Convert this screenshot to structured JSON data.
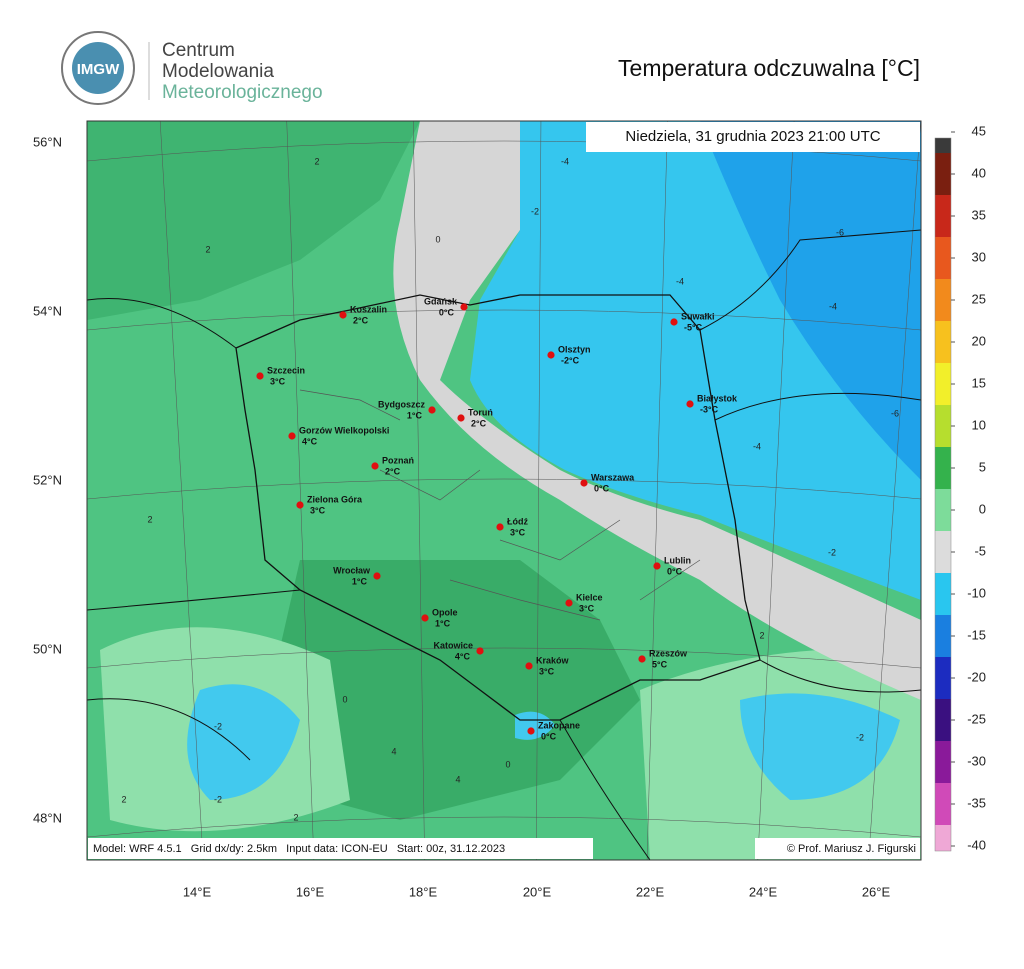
{
  "header": {
    "logo": "IMGW",
    "organization": [
      "Centrum",
      "Modelowania",
      "Meteorologicznego"
    ],
    "title": "Temperatura odczuwalna [°C]"
  },
  "map": {
    "valid_time": "Niedziela, 31 grudnia 2023 21:00 UTC",
    "footer_left": "Model: WRF 4.5.1   Grid dx/dy: 2.5km   Input data: ICON-EU   Start: 00z, 31.12.2023",
    "footer_right": "© Prof. Mariusz J. Figurski",
    "lat_labels": [
      "56°N",
      "54°N",
      "52°N",
      "50°N",
      "48°N"
    ],
    "lon_labels": [
      "14°E",
      "16°E",
      "18°E",
      "20°E",
      "22°E",
      "24°E",
      "26°E"
    ],
    "cities": [
      {
        "name": "Koszalin",
        "temp": "2°C"
      },
      {
        "name": "Gdańsk",
        "temp": "0°C"
      },
      {
        "name": "Suwałki",
        "temp": "-5°C"
      },
      {
        "name": "Olsztyn",
        "temp": "-2°C"
      },
      {
        "name": "Szczecin",
        "temp": "3°C"
      },
      {
        "name": "Białystok",
        "temp": "-3°C"
      },
      {
        "name": "Bydgoszcz",
        "temp": "1°C"
      },
      {
        "name": "Toruń",
        "temp": "2°C"
      },
      {
        "name": "Gorzów Wielkopolski",
        "temp": "4°C"
      },
      {
        "name": "Poznań",
        "temp": "2°C"
      },
      {
        "name": "Warszawa",
        "temp": "0°C"
      },
      {
        "name": "Zielona Góra",
        "temp": "3°C"
      },
      {
        "name": "Łódź",
        "temp": "3°C"
      },
      {
        "name": "Lublin",
        "temp": "0°C"
      },
      {
        "name": "Wrocław",
        "temp": "1°C"
      },
      {
        "name": "Kielce",
        "temp": "3°C"
      },
      {
        "name": "Opole",
        "temp": "1°C"
      },
      {
        "name": "Katowice",
        "temp": "4°C"
      },
      {
        "name": "Rzeszów",
        "temp": "5°C"
      },
      {
        "name": "Kraków",
        "temp": "3°C"
      },
      {
        "name": "Zakopane",
        "temp": "0°C"
      }
    ],
    "contour_labels": [
      "-4",
      "-2",
      "0",
      "2",
      "-4",
      "-4",
      "-6",
      "-4",
      "-6",
      "-2",
      "2",
      "0",
      "2",
      "-2",
      "2",
      "4",
      "-2",
      "4",
      "2",
      "-2",
      "0",
      "2"
    ]
  },
  "colorbar": {
    "ticks": [
      45,
      40,
      35,
      30,
      25,
      20,
      15,
      10,
      5,
      0,
      -5,
      -10,
      -15,
      -20,
      -25,
      -30,
      -35,
      -40
    ],
    "colors": [
      "#3a3a3a",
      "#7a1f10",
      "#c8281a",
      "#e8581e",
      "#f28a1c",
      "#f7c11e",
      "#f2ef2a",
      "#b6de2e",
      "#34b24c",
      "#7ddc9a",
      "#dcdcdc",
      "#29c6ef",
      "#1a7fe0",
      "#1c2cc0",
      "#3a1080",
      "#8a1a9a",
      "#d04ab8",
      "#efa8d6"
    ]
  }
}
